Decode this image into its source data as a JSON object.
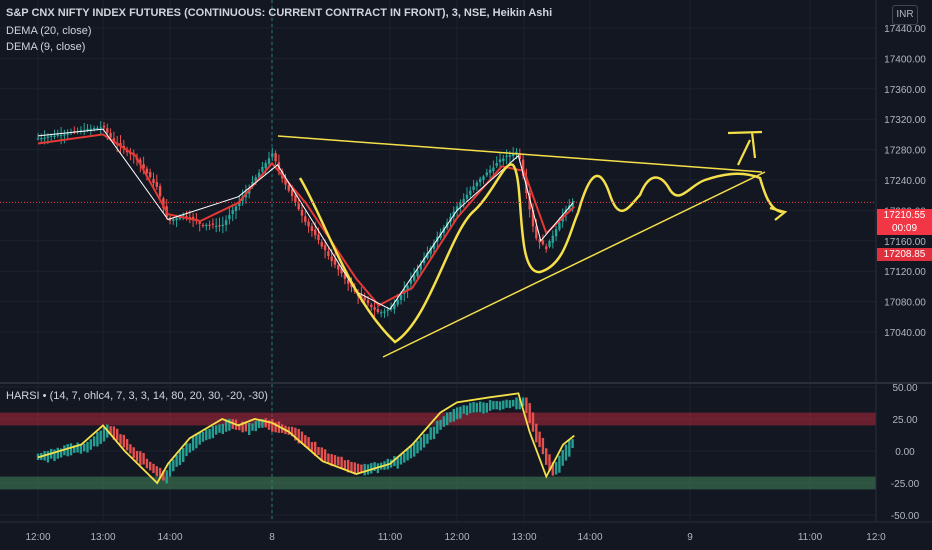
{
  "header": {
    "symbol": "S&P CNX NIFTY INDEX FUTURES (CONTINUOUS: CURRENT CONTRACT IN FRONT), 3, NSE, Heikin Ashi",
    "study1": "DEMA (20, close)",
    "study2": "DEMA (9, close)",
    "study3": "HARSI • (14, 7, ohlc4, 7, 3, 3, 14, 80, 20, 30, -20, -30)",
    "currency": "INR"
  },
  "price_tags": {
    "last": "17210.55",
    "timer": "00:09",
    "open": "17208.85"
  },
  "colors": {
    "bull": "#26a69a",
    "bear": "#ef5350",
    "dema20": "#e53935",
    "dema9": "#ffffff",
    "drawing": "#f5e04a",
    "background": "#131722"
  },
  "chart_data": [
    {
      "type": "line",
      "chart_style": "heikin-ashi-candles",
      "ylim": [
        17000,
        17460
      ],
      "y_ticks": [
        "17440.00",
        "17400.00",
        "17360.00",
        "17320.00",
        "17280.00",
        "17240.00",
        "17200.00",
        "17160.00",
        "17120.00",
        "17080.00",
        "17040.00"
      ],
      "y_tick_values": [
        17440,
        17400,
        17360,
        17320,
        17280,
        17240,
        17200,
        17160,
        17120,
        17080,
        17040
      ],
      "x_ticks": [
        "12:00",
        "13:00",
        "14:00",
        "8",
        "11:00",
        "12:00",
        "13:00",
        "14:00",
        "9",
        "11:00",
        "12:0"
      ],
      "close_path": [
        [
          "12:00",
          17295
        ],
        [
          "12:40",
          17305
        ],
        [
          "13:00",
          17310
        ],
        [
          "13:10",
          17290
        ],
        [
          "13:30",
          17270
        ],
        [
          "13:50",
          17230
        ],
        [
          "14:00",
          17185
        ],
        [
          "14:15",
          17195
        ],
        [
          "14:30",
          17182
        ],
        [
          "14:50",
          17180
        ],
        [
          "15:05",
          17210
        ],
        [
          "15:15",
          17230
        ],
        [
          "8 09:15",
          17275
        ],
        [
          "8 09:25",
          17240
        ],
        [
          "8 09:45",
          17185
        ],
        [
          "8 10:10",
          17130
        ],
        [
          "8 10:30",
          17090
        ],
        [
          "8 10:50",
          17065
        ],
        [
          "8 11:00",
          17070
        ],
        [
          "8 11:20",
          17110
        ],
        [
          "8 11:40",
          17160
        ],
        [
          "8 12:00",
          17205
        ],
        [
          "8 12:20",
          17240
        ],
        [
          "8 12:40",
          17268
        ],
        [
          "8 12:55",
          17278
        ],
        [
          "8 13:00",
          17240
        ],
        [
          "8 13:10",
          17165
        ],
        [
          "8 13:20",
          17150
        ],
        [
          "8 13:35",
          17195
        ],
        [
          "8 13:45",
          17215
        ]
      ],
      "dema20_path": [
        [
          "12:00",
          17288
        ],
        [
          "13:00",
          17300
        ],
        [
          "13:30",
          17272
        ],
        [
          "14:00",
          17195
        ],
        [
          "14:30",
          17186
        ],
        [
          "15:05",
          17210
        ],
        [
          "8 09:15",
          17262
        ],
        [
          "8 09:45",
          17210
        ],
        [
          "8 10:30",
          17110
        ],
        [
          "8 10:50",
          17075
        ],
        [
          "8 11:20",
          17098
        ],
        [
          "8 12:00",
          17190
        ],
        [
          "8 12:40",
          17258
        ],
        [
          "8 13:00",
          17252
        ],
        [
          "8 13:20",
          17170
        ],
        [
          "8 13:45",
          17205
        ]
      ],
      "dema9_path": [
        [
          "12:00",
          17298
        ],
        [
          "13:00",
          17307
        ],
        [
          "14:00",
          17188
        ],
        [
          "15:05",
          17218
        ],
        [
          "8 09:20",
          17260
        ],
        [
          "8 10:30",
          17093
        ],
        [
          "8 11:00",
          17070
        ],
        [
          "8 12:00",
          17200
        ],
        [
          "8 12:55",
          17272
        ],
        [
          "8 13:15",
          17160
        ],
        [
          "8 13:45",
          17212
        ]
      ],
      "last_price": 17210.55,
      "open_price": 17208.85
    },
    {
      "type": "bar",
      "chart_style": "heikin-ashi-rsi-oscillator",
      "ylim": [
        -55,
        55
      ],
      "y_ticks": [
        "50.00",
        "25.00",
        "0.00",
        "-25.00",
        "-50.00"
      ],
      "y_tick_values": [
        50,
        25,
        0,
        -25,
        -50
      ],
      "overbought_band": [
        20,
        30
      ],
      "oversold_band": [
        -20,
        -30
      ],
      "rsi_path": [
        [
          "12:00",
          -5
        ],
        [
          "12:40",
          5
        ],
        [
          "13:00",
          20
        ],
        [
          "13:20",
          0
        ],
        [
          "13:50",
          -25
        ],
        [
          "14:00",
          -10
        ],
        [
          "14:20",
          10
        ],
        [
          "14:50",
          25
        ],
        [
          "15:05",
          20
        ],
        [
          "15:20",
          25
        ],
        [
          "8 09:15",
          22
        ],
        [
          "8 09:30",
          15
        ],
        [
          "8 10:00",
          -8
        ],
        [
          "8 10:30",
          -18
        ],
        [
          "8 11:00",
          -10
        ],
        [
          "8 11:20",
          5
        ],
        [
          "8 11:45",
          30
        ],
        [
          "8 12:00",
          38
        ],
        [
          "8 12:30",
          42
        ],
        [
          "8 12:55",
          45
        ],
        [
          "8 13:05",
          15
        ],
        [
          "8 13:20",
          -20
        ],
        [
          "8 13:35",
          5
        ],
        [
          "8 13:45",
          12
        ]
      ]
    }
  ]
}
